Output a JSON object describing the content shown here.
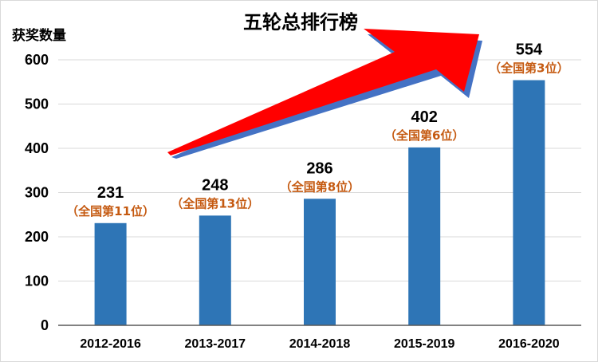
{
  "chart_data": {
    "type": "bar",
    "title": "五轮总排行榜",
    "ylabel": "获奖数量",
    "xlabel": "",
    "categories": [
      "2012-2016",
      "2013-2017",
      "2014-2018",
      "2015-2019",
      "2016-2020"
    ],
    "values": [
      231,
      248,
      286,
      402,
      554
    ],
    "annotations": [
      "（全国第11位）",
      "（全国第13位）",
      "（全国第8位）",
      "（全国第6位）",
      "（全国第3位）"
    ],
    "yticks": [
      "0",
      "100",
      "200",
      "300",
      "400",
      "500",
      "600"
    ],
    "ylim": [
      0,
      600
    ],
    "grid": true,
    "legend": "none",
    "trend_arrow": true,
    "colors": {
      "bar": "#2E75B6",
      "annotation": "#C55A11",
      "grid": "#D9D9D9",
      "axis": "#595959",
      "arrow": "#FF0000",
      "arrow_shadow": "#4472C4"
    }
  }
}
